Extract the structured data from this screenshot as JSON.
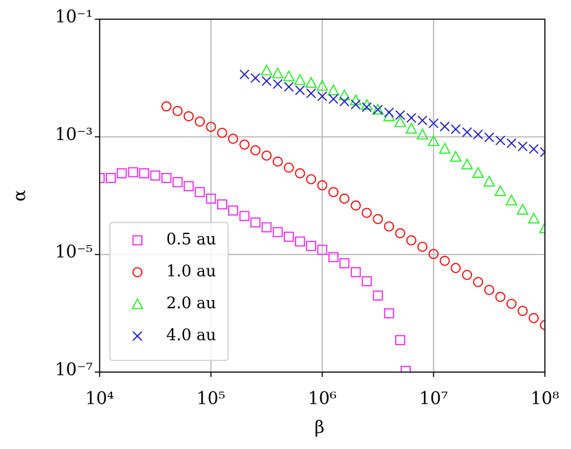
{
  "chart_data": {
    "type": "scatter",
    "x_label": "β",
    "y_label": "α",
    "xscale": "log",
    "yscale": "log",
    "xlim": [
      10000,
      100000000
    ],
    "ylim": [
      1e-07,
      0.1
    ],
    "xticks": [
      {
        "value": 10000,
        "label": "10⁴"
      },
      {
        "value": 100000,
        "label": "10⁵"
      },
      {
        "value": 1000000,
        "label": "10⁶"
      },
      {
        "value": 10000000,
        "label": "10⁷"
      },
      {
        "value": 100000000,
        "label": "10⁸"
      }
    ],
    "yticks": [
      {
        "value": 1e-07,
        "label": "10⁻⁷"
      },
      {
        "value": 1e-05,
        "label": "10⁻⁵"
      },
      {
        "value": 0.001,
        "label": "10⁻³"
      },
      {
        "value": 0.1,
        "label": "10⁻¹"
      }
    ],
    "grid": true,
    "legend": "lower left",
    "series": [
      {
        "name": "0.5 au",
        "color": "#ee22ee",
        "marker": "square",
        "x": [
          10000,
          12600,
          15800,
          20000,
          25100,
          31600,
          39800,
          50100,
          63100,
          79400,
          100000,
          126000,
          158000,
          200000,
          251000,
          316000,
          398000,
          501000,
          631000,
          794000,
          1000000,
          1260000,
          1580000,
          2000000,
          2510000,
          3160000,
          3980000,
          5010000,
          5620000
        ],
        "values": [
          0.0002,
          0.0002,
          0.00024,
          0.00025,
          0.00024,
          0.00022,
          0.0002,
          0.00017,
          0.000145,
          0.000115,
          8.9e-05,
          7.1e-05,
          5.6e-05,
          4.5e-05,
          3.5e-05,
          2.9e-05,
          2.4e-05,
          2e-05,
          1.66e-05,
          1.4e-05,
          1.2e-05,
          9e-06,
          7.1e-06,
          5e-06,
          3.5e-06,
          2e-06,
          1e-06,
          3.5e-07,
          1.05e-07
        ]
      },
      {
        "name": "1.0 au",
        "color": "#ff0000",
        "marker": "circle",
        "x": [
          39800,
          50100,
          63100,
          79400,
          100000,
          126000,
          158000,
          200000,
          251000,
          316000,
          398000,
          501000,
          631000,
          794000,
          1000000,
          1260000,
          1580000,
          2000000,
          2510000,
          3160000,
          3980000,
          5010000,
          6310000,
          7940000,
          10000000,
          12600000,
          15800000,
          20000000,
          25100000,
          31600000,
          39800000,
          50100000,
          63100000,
          79400000,
          100000000
        ],
        "values": [
          0.0033,
          0.00275,
          0.00224,
          0.00182,
          0.00148,
          0.00117,
          0.00093,
          0.00074,
          0.00059,
          0.00048,
          0.00038,
          0.0003,
          0.00024,
          0.00019,
          0.00015,
          0.000115,
          8.9e-05,
          6.8e-05,
          5.1e-05,
          4e-05,
          3e-05,
          2.3e-05,
          1.74e-05,
          1.35e-05,
          1.02e-05,
          7.8e-06,
          5.9e-06,
          4.5e-06,
          3.4e-06,
          2.5e-06,
          1.9e-06,
          1.45e-06,
          1.1e-06,
          8.3e-07,
          6.3e-07
        ]
      },
      {
        "name": "2.0 au",
        "color": "#22ee22",
        "marker": "triangle",
        "x": [
          316000,
          398000,
          501000,
          631000,
          794000,
          1000000,
          1260000,
          1580000,
          2000000,
          2510000,
          3160000,
          3980000,
          5010000,
          6310000,
          7940000,
          10000000,
          12600000,
          15800000,
          20000000,
          25100000,
          31600000,
          39800000,
          50100000,
          63100000,
          79400000,
          100000000
        ],
        "values": [
          0.0135,
          0.012,
          0.0107,
          0.0093,
          0.0083,
          0.0074,
          0.0062,
          0.0051,
          0.0042,
          0.0035,
          0.0029,
          0.00224,
          0.00178,
          0.00138,
          0.0011,
          0.00085,
          0.00063,
          0.00046,
          0.00034,
          0.000245,
          0.000174,
          0.00012,
          8.3e-05,
          5.8e-05,
          4.1e-05,
          2.8e-05
        ]
      },
      {
        "name": "4.0 au",
        "color": "#1515cc",
        "marker": "x",
        "x": [
          200000,
          251000,
          316000,
          398000,
          501000,
          631000,
          794000,
          1000000,
          1260000,
          1580000,
          2000000,
          2510000,
          3160000,
          3980000,
          5010000,
          6310000,
          7940000,
          10000000,
          12600000,
          15800000,
          20000000,
          25100000,
          31600000,
          39800000,
          50100000,
          63100000,
          79400000,
          100000000
        ],
        "values": [
          0.0115,
          0.01,
          0.0089,
          0.0079,
          0.0071,
          0.0062,
          0.0055,
          0.0049,
          0.0044,
          0.004,
          0.00355,
          0.0032,
          0.0029,
          0.0026,
          0.00235,
          0.0021,
          0.0019,
          0.0017,
          0.0015,
          0.00135,
          0.0012,
          0.0011,
          0.00098,
          0.00087,
          0.00078,
          0.00069,
          0.00062,
          0.00055
        ]
      }
    ]
  }
}
